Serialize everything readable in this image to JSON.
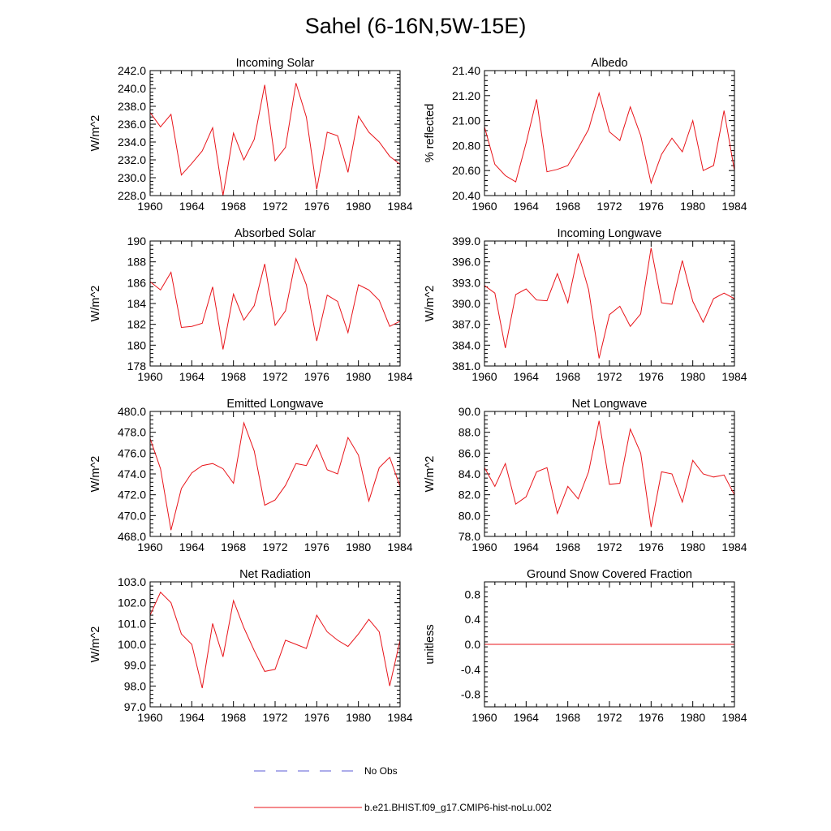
{
  "figure": {
    "title": "Sahel (6-16N,5W-15E)",
    "series_color": "#e8141a",
    "obs_color": "#5b5bd6"
  },
  "legend": {
    "entries": [
      {
        "label": "No Obs",
        "style": "dashed",
        "color": "#5b5bd6"
      },
      {
        "label": "b.e21.BHIST.f09_g17.CMIP6-hist-noLu.002",
        "style": "solid",
        "color": "#e8141a"
      }
    ]
  },
  "chart_data": [
    {
      "type": "line",
      "title": "Incoming Solar",
      "ylabel": "W/m^2",
      "xlim": [
        1960,
        1984
      ],
      "ylim": [
        228,
        242
      ],
      "xticks": [
        "1960",
        "1964",
        "1968",
        "1972",
        "1976",
        "1980",
        "1984"
      ],
      "yticks": [
        "228.0",
        "230.0",
        "232.0",
        "234.0",
        "236.0",
        "238.0",
        "240.0",
        "242.0"
      ],
      "x": [
        1960,
        1961,
        1962,
        1963,
        1964,
        1965,
        1966,
        1967,
        1968,
        1969,
        1970,
        1971,
        1972,
        1973,
        1974,
        1975,
        1976,
        1977,
        1978,
        1979,
        1980,
        1981,
        1982,
        1983,
        1984
      ],
      "series": [
        {
          "name": "b.e21.BHIST.f09_g17.CMIP6-hist-noLu.002",
          "values": [
            237.3,
            235.7,
            237.1,
            230.3,
            231.6,
            233.0,
            235.6,
            228.0,
            235.0,
            232.0,
            234.3,
            240.4,
            231.9,
            233.4,
            240.6,
            236.8,
            228.7,
            235.1,
            234.7,
            230.6,
            236.9,
            235.1,
            234.0,
            232.4,
            231.5
          ]
        }
      ]
    },
    {
      "type": "line",
      "title": "Albedo",
      "ylabel": "% reflected",
      "xlim": [
        1960,
        1984
      ],
      "ylim": [
        20.4,
        21.4
      ],
      "xticks": [
        "1960",
        "1964",
        "1968",
        "1972",
        "1976",
        "1980",
        "1984"
      ],
      "yticks": [
        "20.40",
        "20.60",
        "20.80",
        "21.00",
        "21.20",
        "21.40"
      ],
      "x": [
        1960,
        1961,
        1962,
        1963,
        1964,
        1965,
        1966,
        1967,
        1968,
        1969,
        1970,
        1971,
        1972,
        1973,
        1974,
        1975,
        1976,
        1977,
        1978,
        1979,
        1980,
        1981,
        1982,
        1983,
        1984
      ],
      "series": [
        {
          "name": "b.e21.BHIST.f09_g17.CMIP6-hist-noLu.002",
          "values": [
            20.95,
            20.65,
            20.56,
            20.51,
            20.82,
            21.17,
            20.59,
            20.61,
            20.64,
            20.78,
            20.93,
            21.22,
            20.91,
            20.84,
            21.11,
            20.88,
            20.5,
            20.73,
            20.86,
            20.75,
            21.0,
            20.6,
            20.64,
            21.08,
            20.6
          ]
        }
      ]
    },
    {
      "type": "line",
      "title": "Absorbed Solar",
      "ylabel": "W/m^2",
      "xlim": [
        1960,
        1984
      ],
      "ylim": [
        178,
        190
      ],
      "xticks": [
        "1960",
        "1964",
        "1968",
        "1972",
        "1976",
        "1980",
        "1984"
      ],
      "yticks": [
        "178",
        "180",
        "182",
        "184",
        "186",
        "188",
        "190"
      ],
      "x": [
        1960,
        1961,
        1962,
        1963,
        1964,
        1965,
        1966,
        1967,
        1968,
        1969,
        1970,
        1971,
        1972,
        1973,
        1974,
        1975,
        1976,
        1977,
        1978,
        1979,
        1980,
        1981,
        1982,
        1983,
        1984
      ],
      "series": [
        {
          "name": "b.e21.BHIST.f09_g17.CMIP6-hist-noLu.002",
          "values": [
            186.1,
            185.3,
            187.0,
            181.7,
            181.8,
            182.1,
            185.6,
            179.6,
            184.9,
            182.4,
            183.8,
            187.8,
            181.9,
            183.3,
            188.3,
            185.8,
            180.4,
            184.8,
            184.2,
            181.2,
            185.8,
            185.3,
            184.3,
            181.8,
            182.3
          ]
        }
      ]
    },
    {
      "type": "line",
      "title": "Incoming Longwave",
      "ylabel": "W/m^2",
      "xlim": [
        1960,
        1984
      ],
      "ylim": [
        381,
        399
      ],
      "xticks": [
        "1960",
        "1964",
        "1968",
        "1972",
        "1976",
        "1980",
        "1984"
      ],
      "yticks": [
        "381.0",
        "384.0",
        "387.0",
        "390.0",
        "393.0",
        "396.0",
        "399.0"
      ],
      "x": [
        1960,
        1961,
        1962,
        1963,
        1964,
        1965,
        1966,
        1967,
        1968,
        1969,
        1970,
        1971,
        1972,
        1973,
        1974,
        1975,
        1976,
        1977,
        1978,
        1979,
        1980,
        1981,
        1982,
        1983,
        1984
      ],
      "series": [
        {
          "name": "b.e21.BHIST.f09_g17.CMIP6-hist-noLu.002",
          "values": [
            392.6,
            391.5,
            383.6,
            391.3,
            392.1,
            390.5,
            390.4,
            394.3,
            390.1,
            397.2,
            392.0,
            382.1,
            388.4,
            389.6,
            386.7,
            388.5,
            398.0,
            390.1,
            389.9,
            396.2,
            390.3,
            387.3,
            390.7,
            391.5,
            390.7
          ]
        }
      ]
    },
    {
      "type": "line",
      "title": "Emitted Longwave",
      "ylabel": "W/m^2",
      "xlim": [
        1960,
        1984
      ],
      "ylim": [
        468,
        480
      ],
      "xticks": [
        "1960",
        "1964",
        "1968",
        "1972",
        "1976",
        "1980",
        "1984"
      ],
      "yticks": [
        "468.0",
        "470.0",
        "472.0",
        "474.0",
        "476.0",
        "478.0",
        "480.0"
      ],
      "x": [
        1960,
        1961,
        1962,
        1963,
        1964,
        1965,
        1966,
        1967,
        1968,
        1969,
        1970,
        1971,
        1972,
        1973,
        1974,
        1975,
        1976,
        1977,
        1978,
        1979,
        1980,
        1981,
        1982,
        1983,
        1984
      ],
      "series": [
        {
          "name": "b.e21.BHIST.f09_g17.CMIP6-hist-noLu.002",
          "values": [
            477.4,
            474.5,
            468.6,
            472.6,
            474.1,
            474.8,
            475.0,
            474.5,
            473.1,
            478.9,
            476.2,
            471.0,
            471.5,
            472.9,
            475.0,
            474.8,
            476.8,
            474.4,
            474.0,
            477.5,
            475.8,
            471.4,
            474.6,
            475.6,
            472.8
          ]
        }
      ]
    },
    {
      "type": "line",
      "title": "Net Longwave",
      "ylabel": "W/m^2",
      "xlim": [
        1960,
        1984
      ],
      "ylim": [
        78,
        90
      ],
      "xticks": [
        "1960",
        "1964",
        "1968",
        "1972",
        "1976",
        "1980",
        "1984"
      ],
      "yticks": [
        "78.0",
        "80.0",
        "82.0",
        "84.0",
        "86.0",
        "88.0",
        "90.0"
      ],
      "x": [
        1960,
        1961,
        1962,
        1963,
        1964,
        1965,
        1966,
        1967,
        1968,
        1969,
        1970,
        1971,
        1972,
        1973,
        1974,
        1975,
        1976,
        1977,
        1978,
        1979,
        1980,
        1981,
        1982,
        1983,
        1984
      ],
      "series": [
        {
          "name": "b.e21.BHIST.f09_g17.CMIP6-hist-noLu.002",
          "values": [
            84.6,
            82.8,
            85.0,
            81.1,
            81.8,
            84.2,
            84.6,
            80.2,
            82.8,
            81.6,
            84.2,
            89.1,
            83.0,
            83.1,
            88.3,
            86.0,
            78.9,
            84.2,
            84.0,
            81.3,
            85.3,
            84.0,
            83.7,
            83.9,
            82.0
          ]
        }
      ]
    },
    {
      "type": "line",
      "title": "Net Radiation",
      "ylabel": "W/m^2",
      "xlim": [
        1960,
        1984
      ],
      "ylim": [
        97,
        103
      ],
      "xticks": [
        "1960",
        "1964",
        "1968",
        "1972",
        "1976",
        "1980",
        "1984"
      ],
      "yticks": [
        "97.0",
        "98.0",
        "99.0",
        "100.0",
        "101.0",
        "102.0",
        "103.0"
      ],
      "x": [
        1960,
        1961,
        1962,
        1963,
        1964,
        1965,
        1966,
        1967,
        1968,
        1969,
        1970,
        1971,
        1972,
        1973,
        1974,
        1975,
        1976,
        1977,
        1978,
        1979,
        1980,
        1981,
        1982,
        1983,
        1984
      ],
      "series": [
        {
          "name": "b.e21.BHIST.f09_g17.CMIP6-hist-noLu.002",
          "values": [
            101.4,
            102.5,
            102.0,
            100.5,
            100.0,
            97.9,
            101.0,
            99.4,
            102.1,
            100.8,
            99.7,
            98.7,
            98.8,
            100.2,
            100.0,
            99.8,
            101.4,
            100.6,
            100.2,
            99.9,
            100.5,
            101.2,
            100.6,
            98.0,
            100.2
          ]
        }
      ]
    },
    {
      "type": "line",
      "title": "Ground Snow Covered Fraction",
      "ylabel": "unitless",
      "xlim": [
        1960,
        1984
      ],
      "ylim": [
        -1.0,
        1.0
      ],
      "xticks": [
        "1960",
        "1964",
        "1968",
        "1972",
        "1976",
        "1980",
        "1984"
      ],
      "yticks": [
        "-0.8",
        "-0.4",
        "0.0",
        "0.4",
        "0.8"
      ],
      "ytick_values": [
        -0.8,
        -0.4,
        0.0,
        0.4,
        0.8
      ],
      "x": [
        1960,
        1961,
        1962,
        1963,
        1964,
        1965,
        1966,
        1967,
        1968,
        1969,
        1970,
        1971,
        1972,
        1973,
        1974,
        1975,
        1976,
        1977,
        1978,
        1979,
        1980,
        1981,
        1982,
        1983,
        1984
      ],
      "series": [
        {
          "name": "b.e21.BHIST.f09_g17.CMIP6-hist-noLu.002",
          "values": [
            0,
            0,
            0,
            0,
            0,
            0,
            0,
            0,
            0,
            0,
            0,
            0,
            0,
            0,
            0,
            0,
            0,
            0,
            0,
            0,
            0,
            0,
            0,
            0,
            0
          ]
        }
      ]
    }
  ]
}
